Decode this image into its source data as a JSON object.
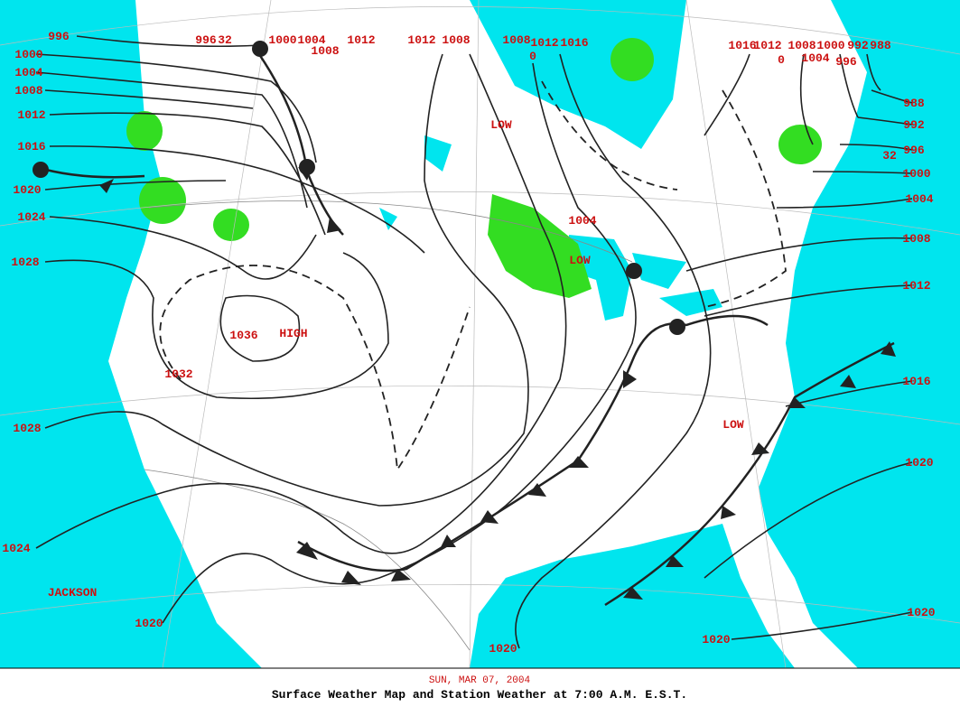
{
  "header": {
    "date": "SUN, MAR 07, 2004",
    "title": "Surface Weather Map and Station Weather at 7:00 A.M. E.S.T."
  },
  "isobar_labels": [
    "996",
    "996",
    "32",
    "1000",
    "1004",
    "1012",
    "1008",
    "1012",
    "1008",
    "1008",
    "0",
    "1012",
    "1016",
    "1016",
    "1012",
    "0",
    "1008",
    "1000",
    "992",
    "988",
    "1004",
    "996",
    "1000",
    "1004",
    "1008",
    "1012",
    "1016",
    "1020",
    "1024",
    "1028",
    "988",
    "992",
    "996",
    "32",
    "1000",
    "1004",
    "1008",
    "1012",
    "1016",
    "1020",
    "1020",
    "1020",
    "1020",
    "1020",
    "1024",
    "1028",
    "1032",
    "1036",
    "1004"
  ],
  "systems": [
    "LOW",
    "LOW",
    "LOW",
    "HIGH"
  ],
  "places": [
    "JACKSON"
  ]
}
